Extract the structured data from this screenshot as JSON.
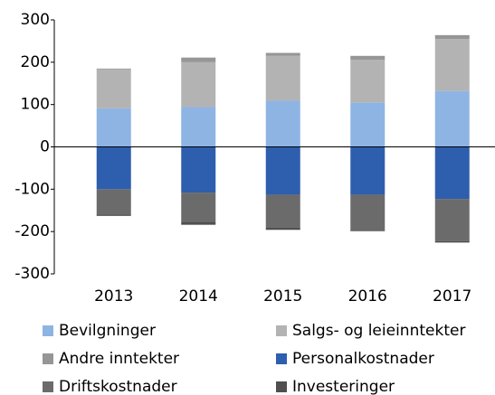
{
  "chart_data": {
    "type": "bar",
    "stacked": true,
    "categories": [
      "2013",
      "2014",
      "2015",
      "2016",
      "2017"
    ],
    "series": [
      {
        "name": "Bevilgninger",
        "color": "#8eb4e3",
        "values": [
          91,
          94,
          109,
          105,
          132
        ]
      },
      {
        "name": "Salgs- og leieinntekter",
        "color": "#b3b3b3",
        "values": [
          92,
          106,
          106,
          101,
          123
        ]
      },
      {
        "name": "Andre inntekter",
        "color": "#969696",
        "values": [
          2,
          11,
          7,
          9,
          9
        ]
      },
      {
        "name": "Personalkostnader",
        "color": "#2e5eae",
        "values": [
          -100,
          -108,
          -113,
          -113,
          -123
        ]
      },
      {
        "name": "Driftskostnader",
        "color": "#6b6b6b",
        "values": [
          -60,
          -69,
          -78,
          -83,
          -100
        ]
      },
      {
        "name": "Investeringer",
        "color": "#4f4f4f",
        "values": [
          -3,
          -7,
          -5,
          -3,
          -3
        ]
      }
    ],
    "ylim": [
      -300,
      300
    ],
    "yticks": [
      -300,
      -200,
      -100,
      0,
      100,
      200,
      300
    ],
    "legend": "bottom"
  }
}
